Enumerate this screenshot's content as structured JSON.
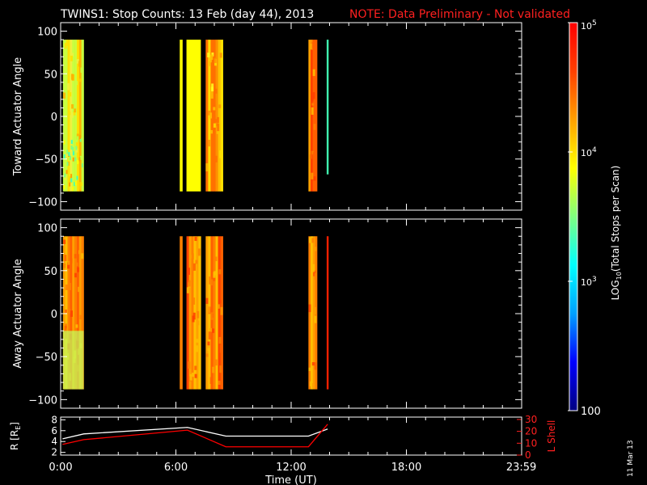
{
  "header": {
    "title": "TWINS1: Stop Counts: 13 Feb (day  44), 2013",
    "note": "NOTE: Data Preliminary - Not validated"
  },
  "side_date": "11 Mar 13",
  "colorbar": {
    "label": "LOG10(Total Stops per Scan)",
    "label_prefix": "LOG",
    "label_sub": "10",
    "label_suffix": "(Total Stops per Scan)",
    "ticks": [
      {
        "text": "10",
        "exp": "5"
      },
      {
        "text": "10",
        "exp": "4"
      },
      {
        "text": "10",
        "exp": "3"
      },
      {
        "text": "100",
        "exp": ""
      }
    ],
    "colors": [
      "#000080",
      "#0000ff",
      "#00a0ff",
      "#00ffff",
      "#80ff80",
      "#ffff00",
      "#ffa000",
      "#ff4000",
      "#ff0000"
    ]
  },
  "chart_data": [
    {
      "type": "heatmap",
      "ylabel": "Toward Actuator Angle",
      "ylim": [
        -110,
        110
      ],
      "yticks": [
        100,
        50,
        0,
        -50,
        -100
      ],
      "xlim": [
        0,
        24
      ],
      "data_ylim": [
        -88,
        90
      ],
      "segments": [
        {
          "start": 0.12,
          "end": 1.2,
          "dominant": "yellow-green",
          "pattern": "stripes"
        },
        {
          "start": 6.2,
          "end": 6.35,
          "dominant": "yellow",
          "pattern": "solid"
        },
        {
          "start": 6.55,
          "end": 7.3,
          "dominant": "yellow",
          "pattern": "solid"
        },
        {
          "start": 7.55,
          "end": 8.45,
          "dominant": "yellow-orange",
          "pattern": "stripes"
        },
        {
          "start": 12.9,
          "end": 13.35,
          "dominant": "orange",
          "pattern": "stripes"
        },
        {
          "start": 13.85,
          "end": 13.95,
          "dominant": "cyan-green",
          "pattern": "solid",
          "ymin": -68
        }
      ]
    },
    {
      "type": "heatmap",
      "ylabel": "Away Actuator Angle",
      "ylim": [
        -110,
        110
      ],
      "yticks": [
        100,
        50,
        0,
        -50,
        -100
      ],
      "xlim": [
        0,
        24
      ],
      "data_ylim": [
        -88,
        90
      ],
      "segments": [
        {
          "start": 0.12,
          "end": 1.2,
          "dominant": "orange",
          "pattern": "stripes"
        },
        {
          "start": 6.2,
          "end": 6.35,
          "dominant": "orange",
          "pattern": "solid"
        },
        {
          "start": 6.55,
          "end": 7.3,
          "dominant": "orange",
          "pattern": "stripes"
        },
        {
          "start": 7.55,
          "end": 8.45,
          "dominant": "orange",
          "pattern": "stripes"
        },
        {
          "start": 12.9,
          "end": 13.35,
          "dominant": "orange",
          "pattern": "stripes"
        },
        {
          "start": 13.85,
          "end": 13.95,
          "dominant": "red",
          "pattern": "solid"
        }
      ]
    },
    {
      "type": "line",
      "ylabel": "R [RE]",
      "ylabel_left_main": "R [R",
      "ylabel_left_sub": "E",
      "ylabel_left_end": "]",
      "ylabel_right": "L Shell",
      "xlabel": "Time (UT)",
      "xticks": [
        "0:00",
        "6:00",
        "12:00",
        "18:00",
        "23:59"
      ],
      "xtick_hours": [
        0,
        6,
        12,
        18,
        23.983
      ],
      "yticks_left": [
        2,
        4,
        6,
        8
      ],
      "yticks_right": [
        0,
        10,
        20,
        30
      ],
      "ylim_left": [
        1.5,
        8.5
      ],
      "ylim_right": [
        0,
        32
      ],
      "series": [
        {
          "axis": "left",
          "color": "#ffffff",
          "x": [
            0.1,
            1.2,
            6.6,
            8.6,
            12.9,
            13.9
          ],
          "y": [
            4.5,
            5.4,
            6.6,
            5.0,
            5.0,
            6.3
          ]
        },
        {
          "axis": "right",
          "color": "#ff0000",
          "x": [
            0.1,
            1.2,
            6.6,
            8.6,
            12.9,
            13.9
          ],
          "y": [
            9,
            13,
            21,
            7,
            7,
            26
          ]
        }
      ]
    }
  ]
}
